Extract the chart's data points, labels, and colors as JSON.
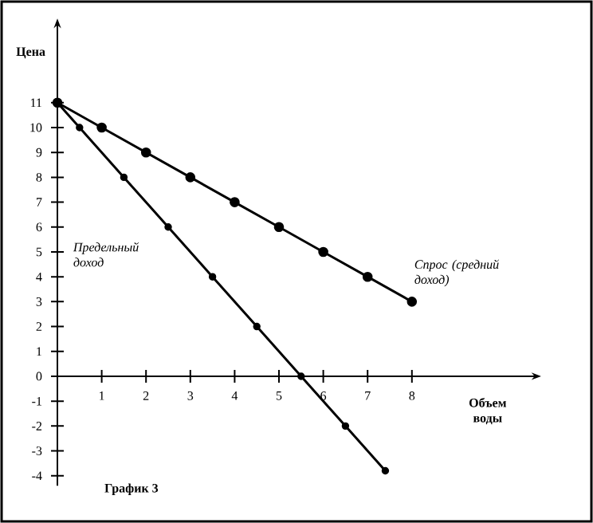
{
  "chart_data": {
    "type": "line",
    "xlabel": "Объем воды",
    "ylabel": "Цена",
    "series": [
      {
        "name": "Спрос (средний доход)",
        "color": "#000000",
        "x": [
          0,
          1,
          2,
          3,
          4,
          5,
          6,
          7,
          8
        ],
        "values": [
          11,
          10,
          9,
          8,
          7,
          6,
          5,
          4,
          3
        ]
      },
      {
        "name": "Предельный доход",
        "color": "#000000",
        "x": [
          0,
          0.5,
          1.5,
          2.5,
          3.5,
          4.5,
          5.5,
          6.5,
          7.4
        ],
        "values": [
          11,
          10,
          8,
          6,
          4,
          2,
          0,
          -2,
          -3.8
        ]
      }
    ],
    "xlim": [
      0,
      10.7
    ],
    "ylim": [
      -4.4,
      14
    ],
    "xticks": [
      1,
      2,
      3,
      4,
      5,
      6,
      7,
      8
    ],
    "yticks": [
      -4,
      -3,
      -2,
      -1,
      0,
      1,
      2,
      3,
      4,
      5,
      6,
      7,
      8,
      9,
      10,
      11
    ],
    "annotations": [
      "График 3"
    ],
    "marker": "circle",
    "line_style": "solid",
    "legend": false,
    "grid": false
  }
}
